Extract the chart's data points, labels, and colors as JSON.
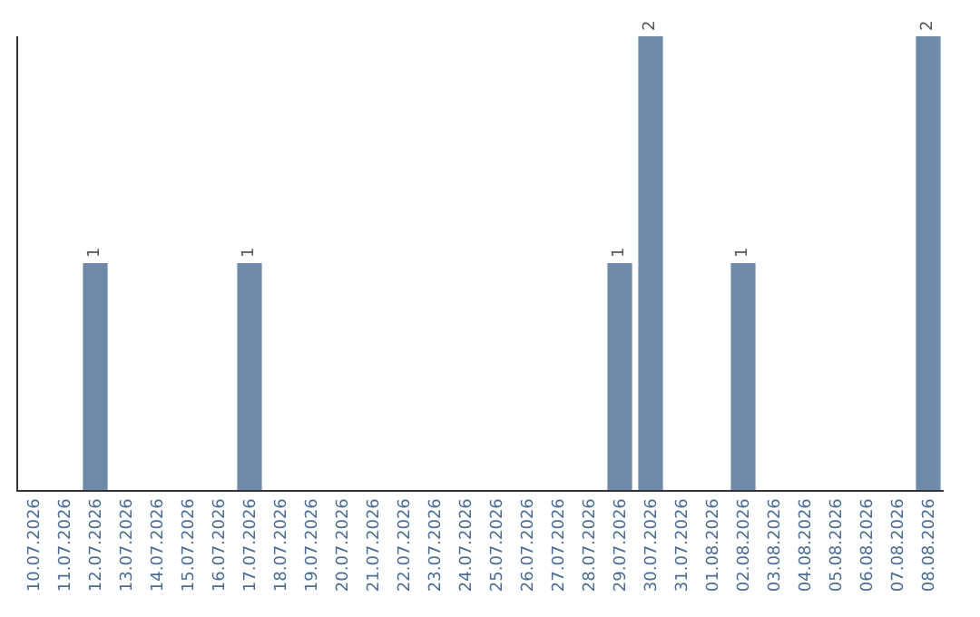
{
  "chart_data": {
    "type": "bar",
    "categories": [
      "10.07.2026",
      "11.07.2026",
      "12.07.2026",
      "13.07.2026",
      "14.07.2026",
      "15.07.2026",
      "16.07.2026",
      "17.07.2026",
      "18.07.2026",
      "19.07.2026",
      "20.07.2026",
      "21.07.2026",
      "22.07.2026",
      "23.07.2026",
      "24.07.2026",
      "25.07.2026",
      "26.07.2026",
      "27.07.2026",
      "28.07.2026",
      "29.07.2026",
      "30.07.2026",
      "31.07.2026",
      "01.08.2026",
      "02.08.2026",
      "03.08.2026",
      "04.08.2026",
      "05.08.2026",
      "06.08.2026",
      "07.08.2026",
      "08.08.2026"
    ],
    "values": [
      0,
      0,
      1,
      0,
      0,
      0,
      0,
      1,
      0,
      0,
      0,
      0,
      0,
      0,
      0,
      0,
      0,
      0,
      0,
      1,
      2,
      0,
      0,
      1,
      0,
      0,
      0,
      0,
      0,
      2
    ],
    "value_labels": [
      null,
      null,
      "1",
      null,
      null,
      null,
      null,
      "1",
      null,
      null,
      null,
      null,
      null,
      null,
      null,
      null,
      null,
      null,
      null,
      "1",
      "2",
      null,
      null,
      "1",
      null,
      null,
      null,
      null,
      null,
      "2"
    ],
    "color": "#6d8ba8",
    "tick_labels": "x",
    "legend": false
  }
}
